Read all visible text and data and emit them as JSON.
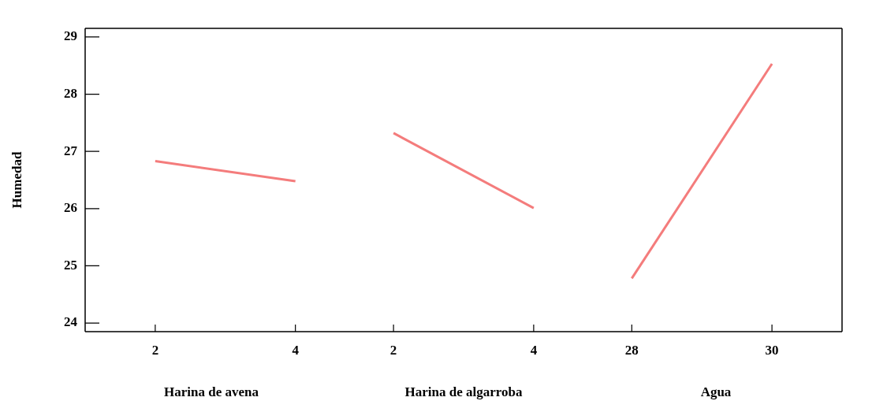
{
  "chart_data": [
    {
      "type": "line",
      "xlabel": "Harina de avena",
      "ylabel": "Humedad",
      "x": [
        2,
        4
      ],
      "xlim": [
        1,
        4.6
      ],
      "xticks": [
        2,
        4
      ],
      "ylim": [
        23.85,
        29.15
      ],
      "yticks": [
        24,
        25,
        26,
        27,
        28,
        29
      ],
      "grid": false,
      "legend": false,
      "marker": "none",
      "line_style": "solid",
      "series": [
        {
          "color": "#f47c7c",
          "values": [
            26.83,
            26.48
          ]
        }
      ]
    },
    {
      "type": "line",
      "xlabel": "Harina de algarroba",
      "x": [
        2,
        4
      ],
      "xlim": [
        1.2,
        4.8
      ],
      "xticks": [
        2,
        4
      ],
      "ylim": [
        23.85,
        29.15
      ],
      "tick_labels": "x",
      "grid": false,
      "legend": false,
      "marker": "none",
      "line_style": "solid",
      "series": [
        {
          "color": "#f47c7c",
          "values": [
            27.32,
            26.01
          ]
        }
      ]
    },
    {
      "type": "line",
      "xlabel": "Agua",
      "x": [
        28,
        30
      ],
      "xlim": [
        27.4,
        31
      ],
      "xticks": [
        28,
        30
      ],
      "ylim": [
        23.85,
        29.15
      ],
      "tick_labels": "x",
      "grid": false,
      "legend": false,
      "marker": "none",
      "line_style": "solid",
      "series": [
        {
          "color": "#f47c7c",
          "values": [
            24.78,
            28.53
          ]
        }
      ]
    }
  ]
}
